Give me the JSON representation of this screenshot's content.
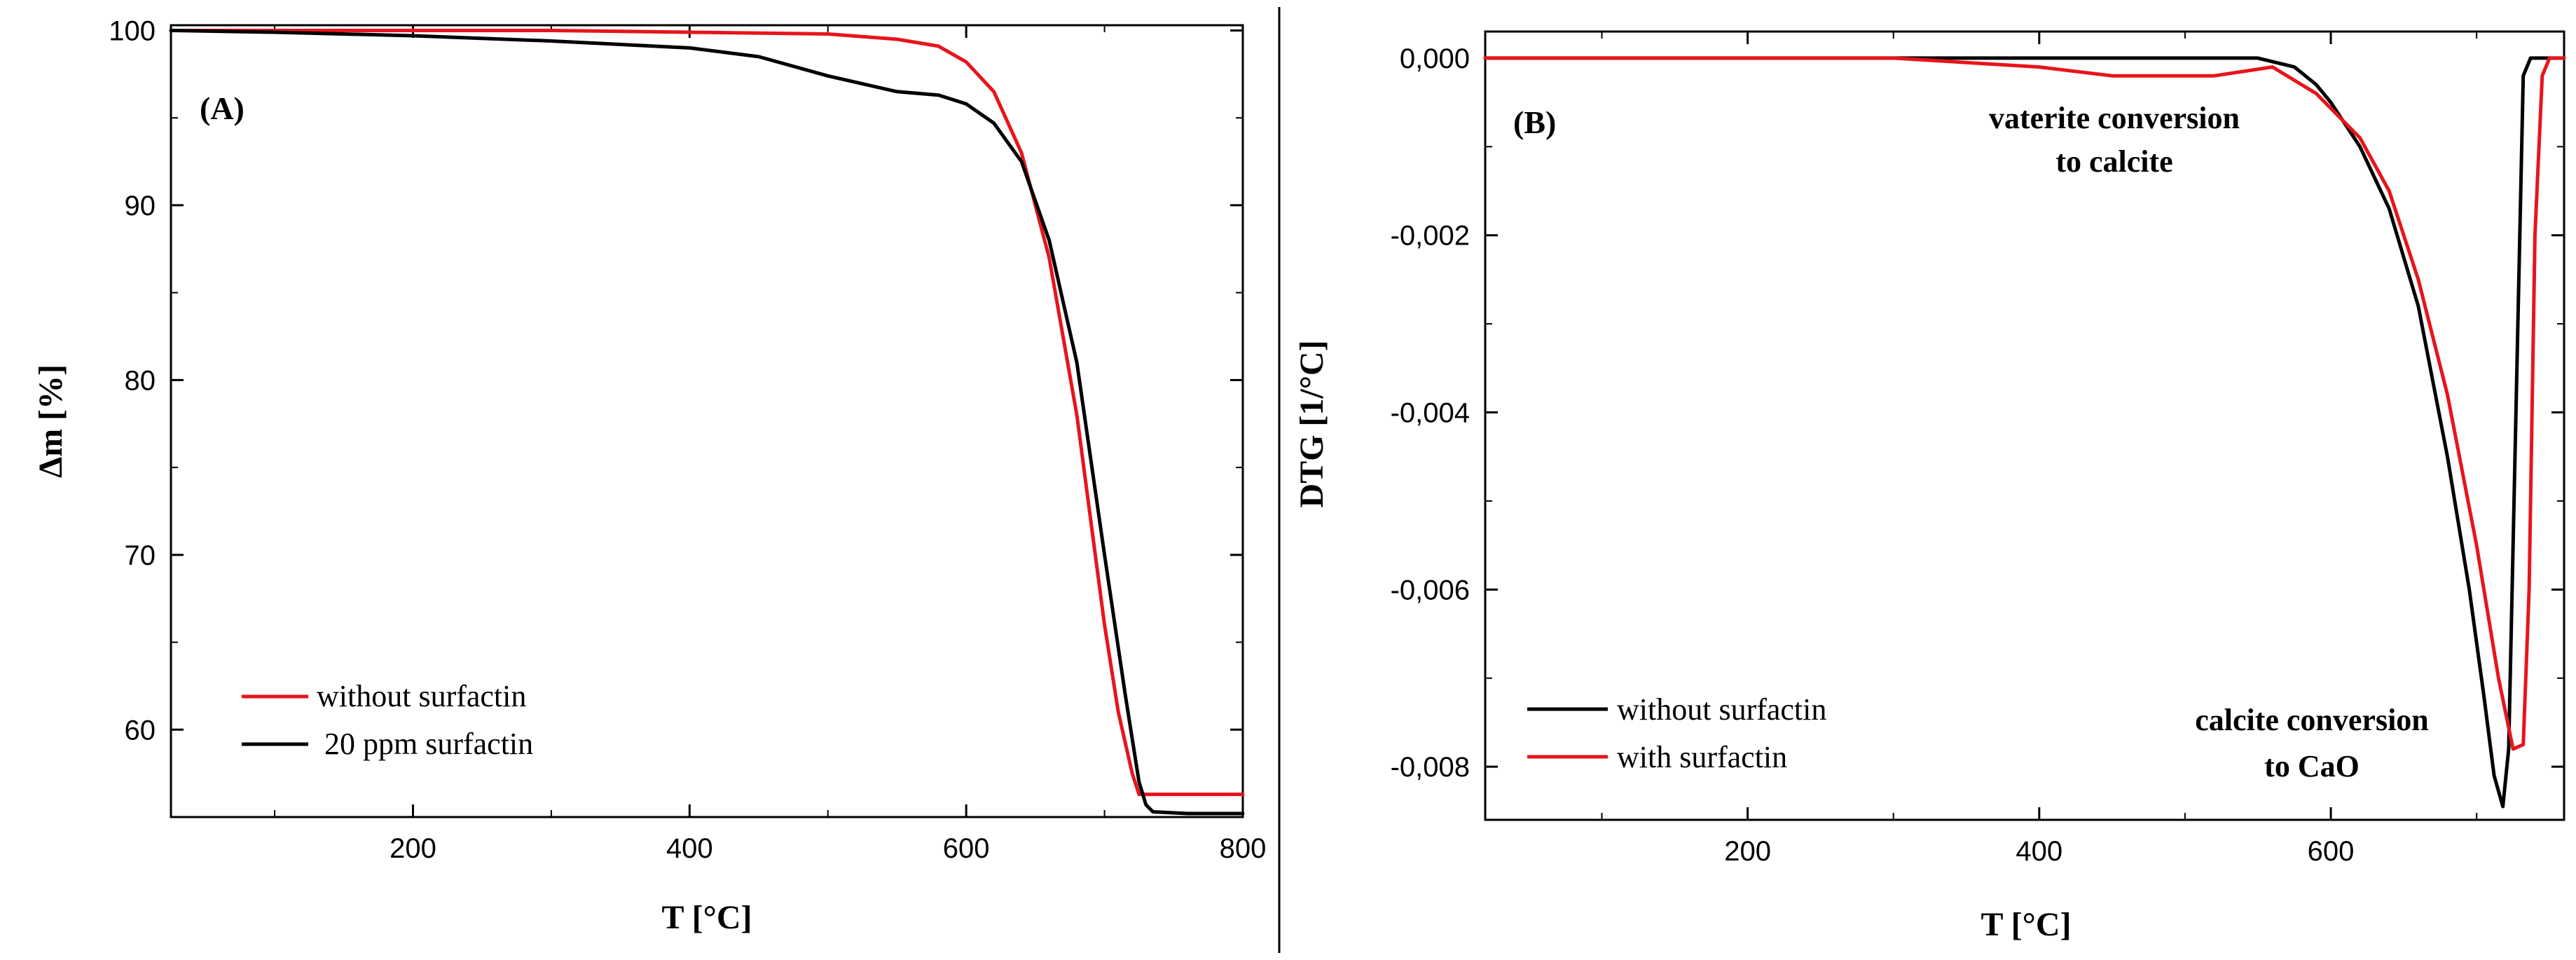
{
  "chart_data": [
    {
      "panel": "(A)",
      "type": "line",
      "xlabel": "T [°C]",
      "ylabel": "Δm [%]",
      "xlim": [
        25,
        800
      ],
      "ylim": [
        55,
        100.3
      ],
      "xticks": [
        200,
        400,
        600,
        800
      ],
      "yticks": [
        60,
        70,
        80,
        90,
        100
      ],
      "legend_position": "bottom-left",
      "series": [
        {
          "name": "without surfactin",
          "color": "#e8141b",
          "x": [
            25,
            100,
            200,
            300,
            400,
            500,
            550,
            580,
            600,
            620,
            640,
            660,
            680,
            700,
            710,
            720,
            725,
            760,
            800
          ],
          "y": [
            100,
            100,
            100,
            100,
            99.9,
            99.8,
            99.5,
            99.1,
            98.2,
            96.5,
            93.0,
            87.0,
            78.0,
            66.0,
            61.0,
            57.5,
            56.3,
            56.3,
            56.3
          ]
        },
        {
          "name": " 20 ppm surfactin",
          "color": "#000000",
          "x": [
            25,
            100,
            200,
            300,
            400,
            450,
            500,
            550,
            580,
            600,
            620,
            640,
            660,
            680,
            700,
            715,
            725,
            730,
            735,
            760,
            800
          ],
          "y": [
            100,
            99.9,
            99.7,
            99.4,
            99.0,
            98.5,
            97.4,
            96.5,
            96.3,
            95.8,
            94.7,
            92.5,
            88.0,
            81.0,
            70.0,
            62.0,
            57.0,
            55.7,
            55.3,
            55.2,
            55.2
          ]
        }
      ]
    },
    {
      "panel": "(B)",
      "type": "line",
      "xlabel": "T [°C]",
      "ylabel": "DTG [1/°C]",
      "xlim": [
        20,
        760
      ],
      "ylim": [
        -0.0086,
        0.0003
      ],
      "xticks": [
        200,
        400,
        600
      ],
      "yticks": [
        0,
        -0.002,
        -0.004,
        -0.006,
        -0.008
      ],
      "ytick_labels": [
        "0,000",
        "-0,002",
        "-0,004",
        "-0,006",
        "-0,008"
      ],
      "legend_position": "bottom-left",
      "annotations": [
        {
          "lines": [
            "vaterite conversion",
            "to calcite"
          ],
          "near_x": 555,
          "near_y": -0.0009
        },
        {
          "lines": [
            "calcite conversion",
            "to CaO"
          ],
          "near_x": 667,
          "near_y": -0.0079
        }
      ],
      "series": [
        {
          "name": "without surfactin",
          "color": "#000000",
          "x": [
            20,
            100,
            200,
            300,
            400,
            500,
            550,
            575,
            590,
            600,
            620,
            640,
            660,
            680,
            695,
            705,
            712,
            718,
            722,
            727,
            732,
            737,
            742,
            760
          ],
          "y": [
            0,
            0,
            0,
            0,
            0,
            0,
            0,
            -0.0001,
            -0.0003,
            -0.0005,
            -0.001,
            -0.0017,
            -0.0028,
            -0.0045,
            -0.006,
            -0.0072,
            -0.0081,
            -0.00845,
            -0.0078,
            -0.004,
            -0.0002,
            0,
            0,
            0
          ]
        },
        {
          "name": "with surfactin",
          "color": "#e8141b",
          "x": [
            20,
            100,
            200,
            300,
            400,
            450,
            480,
            520,
            560,
            590,
            620,
            640,
            660,
            680,
            700,
            715,
            725,
            732,
            736,
            740,
            745,
            750,
            760
          ],
          "y": [
            0,
            0,
            0,
            0,
            -0.0001,
            -0.0002,
            -0.0002,
            -0.0002,
            -0.0001,
            -0.0004,
            -0.0009,
            -0.0015,
            -0.0025,
            -0.0038,
            -0.0055,
            -0.007,
            -0.0078,
            -0.00775,
            -0.006,
            -0.002,
            -0.0002,
            0,
            0
          ]
        }
      ]
    }
  ]
}
